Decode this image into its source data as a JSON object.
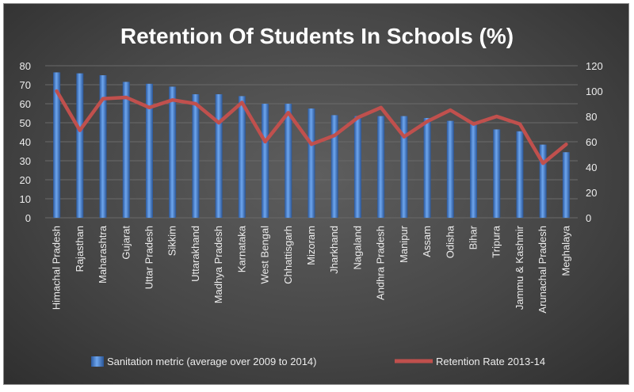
{
  "chart_data": {
    "type": "bar+line",
    "title": "Retention Of Students In Schools (%)",
    "categories": [
      "Himachal Pradesh",
      "Rajasthan",
      "Maharashtra",
      "Gujarat",
      "Uttar Pradesh",
      "Sikkim",
      "Uttarakhand",
      "Madhya Pradesh",
      "Karnataka",
      "West Bengal",
      "Chhattisgarh",
      "Mizoram",
      "Jharkhand",
      "Nagaland",
      "Andhra Pradesh",
      "Manipur",
      "Assam",
      "Odisha",
      "Bihar",
      "Tripura",
      "Jammu & Kashmir",
      "Arunachal Pradesh",
      "Meghalaya"
    ],
    "series": [
      {
        "name": "Sanitation metric (average over 2009 to 2014)",
        "type": "bar",
        "axis": "left",
        "color": "#4f86d6",
        "values": [
          76.5,
          76,
          75,
          71.5,
          70.5,
          69,
          65,
          65,
          64,
          60,
          60,
          57.5,
          54,
          53.5,
          53.5,
          53.5,
          52.5,
          51,
          50.5,
          46.5,
          45.5,
          38.5,
          34.5
        ]
      },
      {
        "name": "Retention Rate 2013-14",
        "type": "line",
        "axis": "right",
        "color": "#c0504d",
        "values": [
          100,
          69,
          94,
          95,
          87,
          93,
          90,
          75,
          91,
          60,
          83,
          58,
          65,
          79,
          87,
          64,
          76,
          85,
          74,
          80,
          74,
          43,
          58
        ]
      }
    ],
    "y_left": {
      "min": 0,
      "max": 80,
      "step": 10,
      "ticks": [
        "0",
        "10",
        "20",
        "30",
        "40",
        "50",
        "60",
        "70",
        "80"
      ]
    },
    "y_right": {
      "min": 0,
      "max": 120,
      "step": 20,
      "ticks": [
        "0",
        "20",
        "40",
        "60",
        "80",
        "100",
        "120"
      ]
    },
    "grid": true,
    "legend_position": "bottom",
    "background": "#474747"
  }
}
